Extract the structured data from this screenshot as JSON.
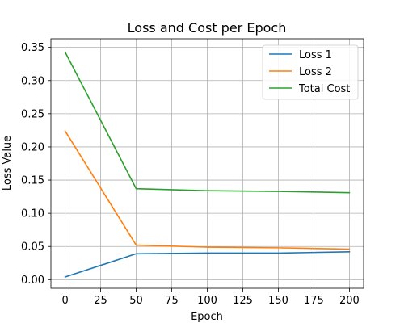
{
  "chart_data": {
    "type": "line",
    "title": "Loss and Cost per Epoch",
    "xlabel": "Epoch",
    "ylabel": "Loss Value",
    "x": [
      0,
      50,
      100,
      150,
      200
    ],
    "xlim": [
      -10,
      210
    ],
    "ylim": [
      -0.013,
      0.363
    ],
    "xticks": [
      0,
      25,
      50,
      75,
      100,
      125,
      150,
      175,
      200
    ],
    "xtick_labels": [
      "0",
      "25",
      "50",
      "75",
      "100",
      "125",
      "150",
      "175",
      "200"
    ],
    "yticks": [
      0.0,
      0.05,
      0.1,
      0.15,
      0.2,
      0.25,
      0.3,
      0.35
    ],
    "ytick_labels": [
      "0.00",
      "0.05",
      "0.10",
      "0.15",
      "0.20",
      "0.25",
      "0.30",
      "0.35"
    ],
    "grid": true,
    "legend_position": "top-right",
    "series": [
      {
        "name": "Loss 1",
        "color": "#1f77b4",
        "values": [
          0.004,
          0.039,
          0.04,
          0.04,
          0.042
        ]
      },
      {
        "name": "Loss 2",
        "color": "#ff7f0e",
        "values": [
          0.224,
          0.052,
          0.049,
          0.048,
          0.046
        ]
      },
      {
        "name": "Total Cost",
        "color": "#2ca02c",
        "values": [
          0.343,
          0.137,
          0.134,
          0.133,
          0.131
        ]
      }
    ]
  }
}
